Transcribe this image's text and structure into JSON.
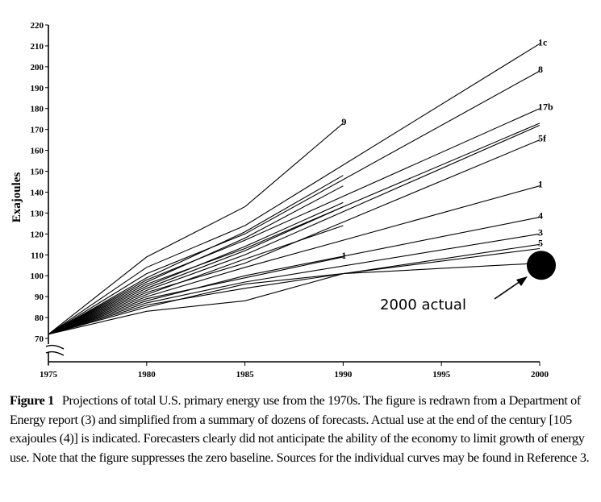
{
  "chart_data": {
    "type": "line",
    "title": "",
    "xlabel": "",
    "ylabel": "Exajoules",
    "xlim": [
      1975,
      2000
    ],
    "ylim": [
      70,
      220
    ],
    "x_ticks": [
      "1975",
      "1980",
      "1985",
      "1990",
      "1995",
      "2000"
    ],
    "y_ticks": [
      "70",
      "80",
      "90",
      "100",
      "110",
      "120",
      "130",
      "140",
      "150",
      "160",
      "170",
      "180",
      "190",
      "200",
      "210",
      "220"
    ],
    "grid": false,
    "series": [
      {
        "name": "9",
        "x": [
          1975,
          1980,
          1985,
          1990
        ],
        "y": [
          72,
          109,
          133,
          173
        ]
      },
      {
        "name": "1c",
        "x": [
          1975,
          1980,
          1985,
          2000
        ],
        "y": [
          72,
          104,
          124,
          211
        ]
      },
      {
        "name": "8",
        "x": [
          1975,
          1980,
          1985,
          2000
        ],
        "y": [
          72,
          101,
          120,
          198
        ]
      },
      {
        "name": "17b",
        "x": [
          1975,
          1980,
          1985,
          2000
        ],
        "y": [
          72,
          98,
          117,
          180
        ]
      },
      {
        "name": "",
        "x": [
          1975,
          1980,
          1985,
          2000
        ],
        "y": [
          72,
          96,
          113,
          173
        ]
      },
      {
        "name": "",
        "x": [
          1975,
          1980,
          1985,
          2000
        ],
        "y": [
          72,
          93,
          110,
          172
        ]
      },
      {
        "name": "5f",
        "x": [
          1975,
          1980,
          1985,
          2000
        ],
        "y": [
          72,
          92,
          106,
          165
        ]
      },
      {
        "name": "",
        "x": [
          1975,
          1980,
          1985,
          1990
        ],
        "y": [
          72,
          99,
          121,
          148
        ]
      },
      {
        "name": "",
        "x": [
          1975,
          1980,
          1985,
          1990
        ],
        "y": [
          72,
          97,
          118,
          143
        ]
      },
      {
        "name": "",
        "x": [
          1975,
          1980,
          1985,
          1990
        ],
        "y": [
          72,
          95,
          114,
          135
        ]
      },
      {
        "name": "",
        "x": [
          1975,
          1980,
          1985,
          1990
        ],
        "y": [
          72,
          94,
          112,
          133
        ]
      },
      {
        "name": "",
        "x": [
          1975,
          1980,
          1985,
          1990
        ],
        "y": [
          72,
          91,
          108,
          124
        ]
      },
      {
        "name": "1",
        "x": [
          1975,
          1980,
          1985,
          2000
        ],
        "y": [
          72,
          90,
          104,
          143
        ]
      },
      {
        "name": "4",
        "x": [
          1975,
          1980,
          1985,
          2000
        ],
        "y": [
          72,
          88,
          100,
          128
        ]
      },
      {
        "name": "3",
        "x": [
          1975,
          1980,
          1985,
          2000
        ],
        "y": [
          72,
          87,
          97,
          120
        ]
      },
      {
        "name": "5",
        "x": [
          1975,
          1980,
          1985,
          2000
        ],
        "y": [
          72,
          86,
          94,
          115
        ]
      },
      {
        "name": "1",
        "x": [
          1975,
          1980,
          1985,
          1990
        ],
        "y": [
          72,
          89,
          99,
          109
        ]
      },
      {
        "name": "",
        "x": [
          1975,
          1980,
          1985,
          1990,
          2000
        ],
        "y": [
          72,
          85,
          96,
          101,
          106
        ]
      },
      {
        "name": "",
        "x": [
          1975,
          1980,
          1985,
          1990,
          2000
        ],
        "y": [
          72,
          83,
          88,
          101,
          113
        ]
      }
    ],
    "actual_point": {
      "x": 2000,
      "y": 105
    },
    "annotations": [
      "2000 actual"
    ],
    "axis_break": true
  },
  "caption": {
    "label": "Figure 1",
    "text": "Projections of total U.S. primary energy use from the 1970s. The figure is redrawn from a Department of Energy report (3) and simplified from a summary of dozens of forecasts. Actual use at the end of the century [105 exajoules (4)] is indicated. Forecasters clearly did not anticipate the ability of the economy to limit growth of energy use. Note that the figure suppresses the zero baseline. Sources for the individual curves may be found in Reference 3."
  },
  "colors": {
    "ink": "#000000",
    "background": "#ffffff"
  }
}
